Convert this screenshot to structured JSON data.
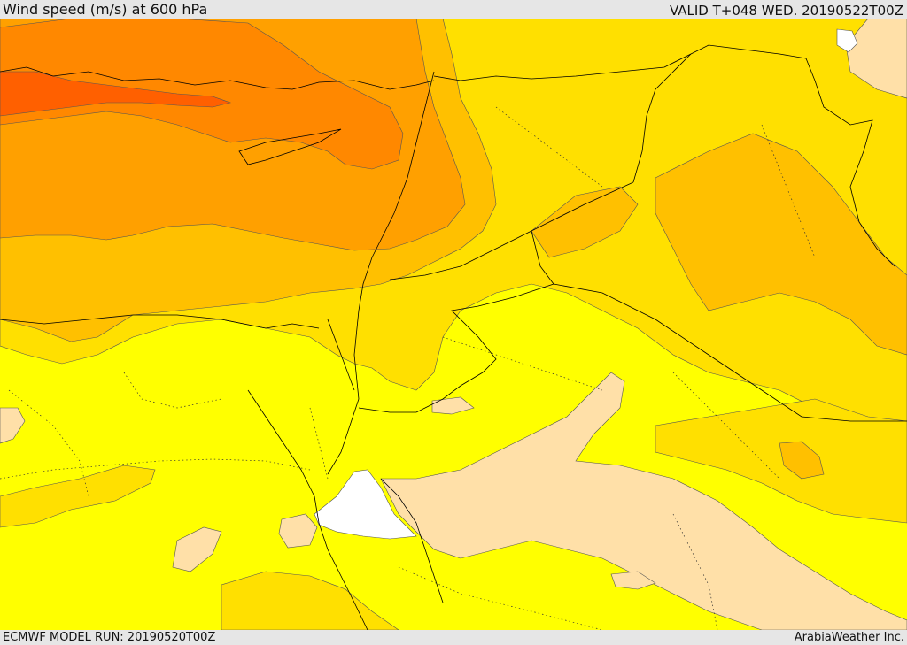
{
  "header": {
    "title": "Wind speed (m/s) at 600 hPa",
    "valid": "VALID T+048 WED. 20190522T00Z"
  },
  "footer": {
    "model_run": "ECMWF MODEL RUN: 20190520T00Z",
    "credit": "ArabiaWeather Inc."
  },
  "map": {
    "colors": {
      "speed_lowest": "#ffffff",
      "speed_low": "#ffe0a8",
      "speed_mid": "#ffff00",
      "speed_mid_high": "#ffe000",
      "speed_high": "#ffc000",
      "speed_higher": "#ffa000",
      "speed_very_high": "#ff8800",
      "speed_max": "#ff6000",
      "contour": "#555555",
      "border": "#000000"
    }
  }
}
